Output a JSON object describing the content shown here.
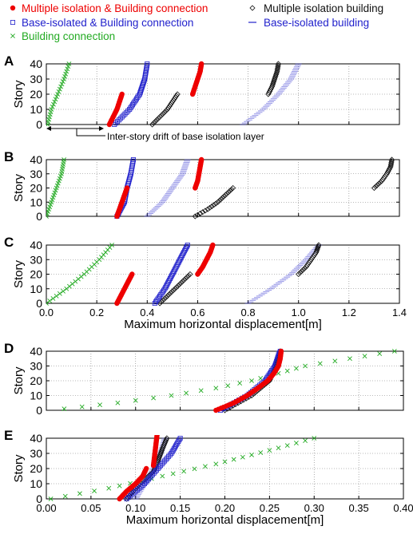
{
  "legend": {
    "entries": [
      {
        "label": "Multiple isolation & Building connection",
        "color": "#ee0000",
        "marker": "filled-circle"
      },
      {
        "label": "Base-isolated & Building connection",
        "color": "#2222cc",
        "marker": "open-square"
      },
      {
        "label": "Building connection",
        "color": "#22aa22",
        "marker": "x-cross"
      },
      {
        "label": "Multiple isolation building",
        "color": "#111111",
        "marker": "open-diamond"
      },
      {
        "label": "Base-isolated building",
        "color": "#2222cc",
        "marker": "dash"
      }
    ]
  },
  "annotation": "Inter-story drift of base isolation layer",
  "chart_data": [
    {
      "type": "scatter",
      "panel_label": "A",
      "ylabel": "Story",
      "xlabel": "",
      "xlim": [
        0,
        1.4
      ],
      "ylim": [
        0,
        40
      ],
      "xticks": [],
      "yticks": [
        0,
        10,
        20,
        30,
        40
      ],
      "grid": true,
      "series": [
        {
          "name": "Building connection",
          "points": [
            [
              0.005,
              0
            ],
            [
              0.02,
              10
            ],
            [
              0.045,
              20
            ],
            [
              0.07,
              30
            ],
            [
              0.09,
              40
            ]
          ]
        },
        {
          "name": "Multiple isolation & Building connection",
          "points": [
            [
              0.25,
              0
            ],
            [
              0.265,
              5
            ],
            [
              0.28,
              10
            ],
            [
              0.29,
              15
            ],
            [
              0.3,
              20
            ]
          ]
        },
        {
          "name": "Base-isolated & Building connection",
          "points": [
            [
              0.27,
              0
            ],
            [
              0.33,
              10
            ],
            [
              0.37,
              20
            ],
            [
              0.39,
              30
            ],
            [
              0.4,
              40
            ]
          ]
        },
        {
          "name": "Multiple isolation building",
          "points": [
            [
              0.42,
              0
            ],
            [
              0.45,
              5
            ],
            [
              0.48,
              10
            ],
            [
              0.5,
              15
            ],
            [
              0.52,
              20
            ]
          ]
        },
        {
          "name": "Multiple isolation & Building connection",
          "points": [
            [
              0.58,
              20
            ],
            [
              0.59,
              25
            ],
            [
              0.6,
              30
            ],
            [
              0.61,
              35
            ],
            [
              0.615,
              40
            ]
          ]
        },
        {
          "name": "Base-isolated building",
          "points": [
            [
              0.78,
              0
            ],
            [
              0.86,
              10
            ],
            [
              0.92,
              20
            ],
            [
              0.97,
              30
            ],
            [
              1.0,
              40
            ]
          ]
        },
        {
          "name": "Multiple isolation building",
          "points": [
            [
              0.88,
              20
            ],
            [
              0.895,
              25
            ],
            [
              0.905,
              30
            ],
            [
              0.915,
              35
            ],
            [
              0.92,
              40
            ]
          ]
        }
      ]
    },
    {
      "type": "scatter",
      "panel_label": "B",
      "ylabel": "Story",
      "xlabel": "",
      "xlim": [
        0,
        1.4
      ],
      "ylim": [
        0,
        40
      ],
      "xticks": [],
      "yticks": [
        0,
        10,
        20,
        30,
        40
      ],
      "grid": true,
      "series": [
        {
          "name": "Building connection",
          "points": [
            [
              0.0,
              0
            ],
            [
              0.02,
              10
            ],
            [
              0.04,
              20
            ],
            [
              0.06,
              30
            ],
            [
              0.07,
              40
            ]
          ]
        },
        {
          "name": "Multiple isolation & Building connection",
          "points": [
            [
              0.28,
              0
            ],
            [
              0.29,
              5
            ],
            [
              0.3,
              10
            ],
            [
              0.31,
              15
            ],
            [
              0.32,
              20
            ]
          ]
        },
        {
          "name": "Base-isolated & Building connection",
          "points": [
            [
              0.28,
              0
            ],
            [
              0.31,
              10
            ],
            [
              0.32,
              20
            ],
            [
              0.335,
              30
            ],
            [
              0.345,
              40
            ]
          ]
        },
        {
          "name": "Base-isolated building",
          "points": [
            [
              0.4,
              0
            ],
            [
              0.46,
              10
            ],
            [
              0.5,
              20
            ],
            [
              0.54,
              30
            ],
            [
              0.56,
              40
            ]
          ]
        },
        {
          "name": "Multiple isolation & Building connection",
          "points": [
            [
              0.59,
              20
            ],
            [
              0.6,
              25
            ],
            [
              0.605,
              30
            ],
            [
              0.61,
              35
            ],
            [
              0.615,
              40
            ]
          ]
        },
        {
          "name": "Multiple isolation building",
          "points": [
            [
              0.59,
              0
            ],
            [
              0.64,
              5
            ],
            [
              0.68,
              10
            ],
            [
              0.71,
              15
            ],
            [
              0.74,
              20
            ]
          ]
        },
        {
          "name": "Multiple isolation building",
          "points": [
            [
              1.3,
              20
            ],
            [
              1.33,
              25
            ],
            [
              1.35,
              30
            ],
            [
              1.365,
              35
            ],
            [
              1.37,
              40
            ]
          ]
        }
      ]
    },
    {
      "type": "scatter",
      "panel_label": "C",
      "ylabel": "Story",
      "xlabel": "Maximum horizontal displacement[m]",
      "xlim": [
        0,
        1.4
      ],
      "ylim": [
        0,
        40
      ],
      "xticks": [
        "0.0",
        "0.2",
        "0.4",
        "0.6",
        "0.8",
        "1.0",
        "1.2",
        "1.4"
      ],
      "yticks": [
        0,
        10,
        20,
        30,
        40
      ],
      "grid": true,
      "series": [
        {
          "name": "Building connection",
          "points": [
            [
              0.0,
              0
            ],
            [
              0.08,
              10
            ],
            [
              0.15,
              20
            ],
            [
              0.21,
              30
            ],
            [
              0.26,
              40
            ]
          ]
        },
        {
          "name": "Multiple isolation & Building connection",
          "points": [
            [
              0.28,
              0
            ],
            [
              0.295,
              5
            ],
            [
              0.31,
              10
            ],
            [
              0.325,
              15
            ],
            [
              0.34,
              20
            ]
          ]
        },
        {
          "name": "Base-isolated & Building connection",
          "points": [
            [
              0.43,
              0
            ],
            [
              0.47,
              10
            ],
            [
              0.5,
              20
            ],
            [
              0.53,
              30
            ],
            [
              0.56,
              40
            ]
          ]
        },
        {
          "name": "Multiple isolation building",
          "points": [
            [
              0.45,
              0
            ],
            [
              0.48,
              5
            ],
            [
              0.51,
              10
            ],
            [
              0.54,
              15
            ],
            [
              0.57,
              20
            ]
          ]
        },
        {
          "name": "Multiple isolation & Building connection",
          "points": [
            [
              0.6,
              20
            ],
            [
              0.62,
              25
            ],
            [
              0.635,
              30
            ],
            [
              0.65,
              35
            ],
            [
              0.66,
              40
            ]
          ]
        },
        {
          "name": "Base-isolated building",
          "points": [
            [
              0.8,
              0
            ],
            [
              0.89,
              10
            ],
            [
              0.97,
              20
            ],
            [
              1.03,
              30
            ],
            [
              1.08,
              40
            ]
          ]
        },
        {
          "name": "Multiple isolation building",
          "points": [
            [
              1.0,
              20
            ],
            [
              1.03,
              25
            ],
            [
              1.05,
              30
            ],
            [
              1.07,
              35
            ],
            [
              1.08,
              40
            ]
          ]
        }
      ]
    },
    {
      "type": "scatter",
      "panel_label": "D",
      "ylabel": "Story",
      "xlabel": "",
      "xlim": [
        0,
        0.4
      ],
      "ylim": [
        0,
        40
      ],
      "xticks": [],
      "yticks": [
        0,
        10,
        20,
        30,
        40
      ],
      "grid": true,
      "series": [
        {
          "name": "Building connection",
          "points": [
            [
              0.02,
              1
            ],
            [
              0.08,
              5
            ],
            [
              0.14,
              10
            ],
            [
              0.19,
              15
            ],
            [
              0.23,
              20
            ],
            [
              0.26,
              25
            ],
            [
              0.29,
              30
            ],
            [
              0.34,
              35
            ],
            [
              0.39,
              40
            ]
          ]
        },
        {
          "name": "Multiple isolation & Building connection",
          "points": [
            [
              0.19,
              0
            ],
            [
              0.21,
              5
            ],
            [
              0.225,
              10
            ],
            [
              0.237,
              15
            ],
            [
              0.248,
              20
            ],
            [
              0.255,
              25
            ],
            [
              0.26,
              30
            ],
            [
              0.262,
              35
            ],
            [
              0.263,
              40
            ]
          ]
        },
        {
          "name": "Base-isolated & Building connection",
          "points": [
            [
              0.195,
              0
            ],
            [
              0.225,
              10
            ],
            [
              0.245,
              20
            ],
            [
              0.256,
              30
            ],
            [
              0.262,
              40
            ]
          ]
        },
        {
          "name": "Multiple isolation building",
          "points": [
            [
              0.2,
              0
            ],
            [
              0.23,
              10
            ],
            [
              0.25,
              20
            ],
            [
              0.258,
              30
            ],
            [
              0.262,
              40
            ]
          ]
        },
        {
          "name": "Base-isolated building",
          "points": [
            [
              0.2,
              0
            ],
            [
              0.228,
              10
            ],
            [
              0.247,
              20
            ],
            [
              0.257,
              30
            ],
            [
              0.261,
              40
            ]
          ]
        }
      ]
    },
    {
      "type": "scatter",
      "panel_label": "E",
      "ylabel": "Story",
      "xlabel": "Maximum horizontal displacement[m]",
      "xlim": [
        0,
        0.4
      ],
      "ylim": [
        0,
        40
      ],
      "xticks": [
        "0.00",
        "0.05",
        "0.10",
        "0.15",
        "0.20",
        "0.25",
        "0.30",
        "0.35",
        "0.40"
      ],
      "yticks": [
        0,
        10,
        20,
        30,
        40
      ],
      "grid": true,
      "series": [
        {
          "name": "Building connection",
          "points": [
            [
              0.005,
              0
            ],
            [
              0.07,
              7
            ],
            [
              0.13,
              15
            ],
            [
              0.19,
              23
            ],
            [
              0.25,
              32
            ],
            [
              0.3,
              40
            ]
          ]
        },
        {
          "name": "Multiple isolation & Building connection",
          "points": [
            [
              0.082,
              0
            ],
            [
              0.09,
              5
            ],
            [
              0.1,
              10
            ],
            [
              0.108,
              15
            ],
            [
              0.112,
              20
            ]
          ]
        },
        {
          "name": "Multiple isolation & Building connection",
          "points": [
            [
              0.12,
              22
            ],
            [
              0.121,
              27
            ],
            [
              0.122,
              32
            ],
            [
              0.123,
              37
            ],
            [
              0.124,
              42
            ]
          ]
        },
        {
          "name": "Base-isolated & Building connection",
          "points": [
            [
              0.09,
              0
            ],
            [
              0.11,
              10
            ],
            [
              0.125,
              20
            ],
            [
              0.14,
              30
            ],
            [
              0.15,
              40
            ]
          ]
        },
        {
          "name": "Multiple isolation building",
          "points": [
            [
              0.09,
              0
            ],
            [
              0.105,
              10
            ],
            [
              0.12,
              18
            ],
            [
              0.125,
              25
            ],
            [
              0.13,
              33
            ],
            [
              0.135,
              40
            ]
          ]
        },
        {
          "name": "Base-isolated building",
          "points": [
            [
              0.1,
              0
            ],
            [
              0.11,
              10
            ],
            [
              0.12,
              20
            ],
            [
              0.128,
              30
            ],
            [
              0.133,
              40
            ]
          ]
        }
      ]
    }
  ]
}
